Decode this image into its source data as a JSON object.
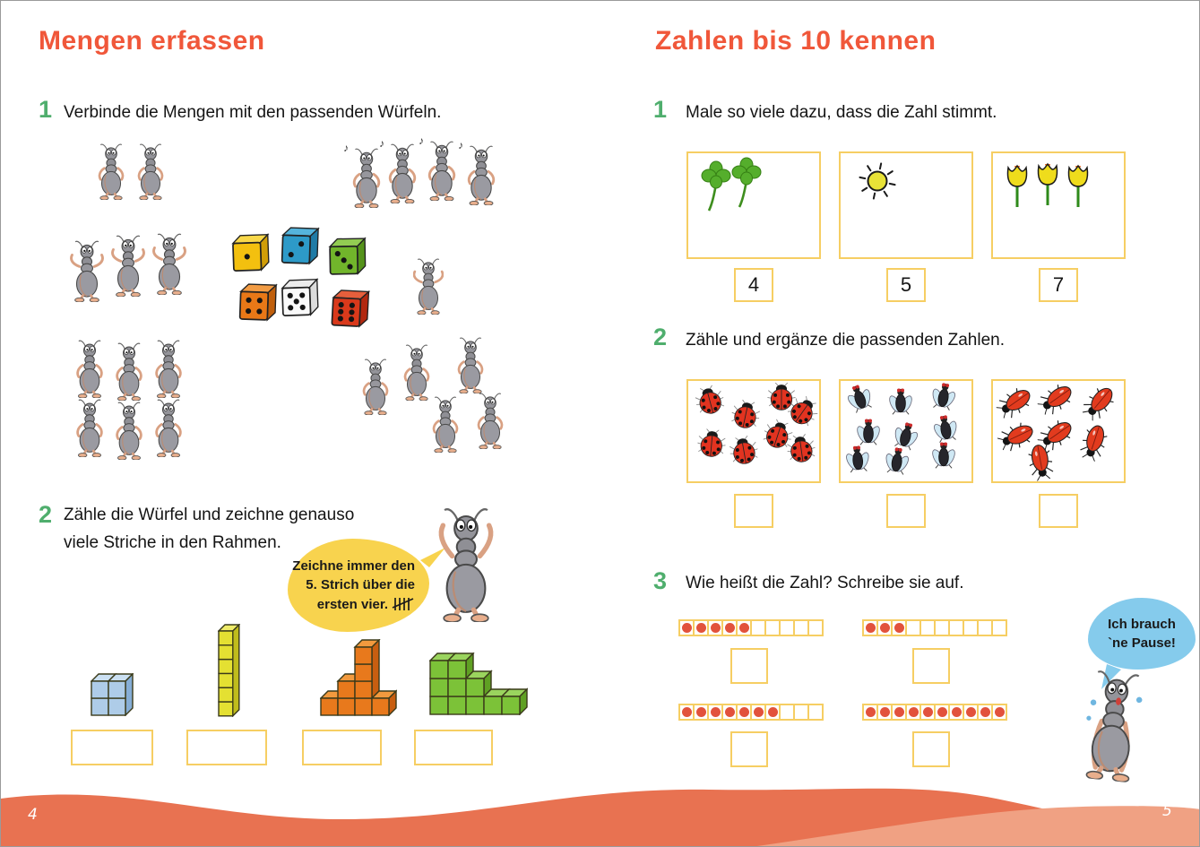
{
  "colors": {
    "title_orange": "#F0573A",
    "task_number_green": "#4FAE6D",
    "frame_border_yellow": "#F6CE63",
    "counting_dot_red": "#E2523C",
    "wave_main_orange": "#E87251",
    "wave_light_salmon": "#F0A183",
    "hint_bubble_yellow": "#F8D34E",
    "pause_bubble_blue": "#85CBEC"
  },
  "left_page": {
    "title": "Mengen erfassen",
    "page_number": "4",
    "task1": {
      "number": "1",
      "text": "Verbinde die Mengen mit den passenden Würfeln.",
      "ant_groups": [
        {
          "name": "two-ants",
          "count": 2
        },
        {
          "name": "four-marching-ants",
          "count": 4
        },
        {
          "name": "three-dancing-ants",
          "count": 3
        },
        {
          "name": "one-running-ant",
          "count": 1
        },
        {
          "name": "six-standing-ants",
          "count": 6
        },
        {
          "name": "five-walking-ants",
          "count": 5
        }
      ],
      "dice": [
        {
          "color": "yellow",
          "pips": 1
        },
        {
          "color": "blue",
          "pips": 2
        },
        {
          "color": "green",
          "pips": 3
        },
        {
          "color": "orange",
          "pips": 4
        },
        {
          "color": "white",
          "pips": 5
        },
        {
          "color": "red",
          "pips": 6
        }
      ]
    },
    "task2": {
      "number": "2",
      "text_line1": "Zähle die Würfel und zeichne genauso",
      "text_line2": "viele Striche in den Rahmen.",
      "bubble_lines": [
        "Zeichne immer den",
        "5. Strich über die",
        "ersten vier."
      ],
      "cube_structures": [
        {
          "color": "blue",
          "column_heights": [
            2,
            2
          ]
        },
        {
          "color": "yellow",
          "column_heights": [
            6
          ]
        },
        {
          "color": "orange",
          "column_heights": [
            1,
            2,
            4,
            1
          ]
        },
        {
          "color": "green",
          "column_heights": [
            3,
            3,
            2,
            1,
            1
          ]
        }
      ],
      "answer_frame_count": 4
    }
  },
  "right_page": {
    "title": "Zahlen bis 10 kennen",
    "page_number": "5",
    "task1": {
      "number": "1",
      "text": "Male so viele dazu, dass die Zahl stimmt.",
      "boxes": [
        {
          "item": "clover",
          "drawn_count": 2,
          "target_number": "4"
        },
        {
          "item": "sun",
          "drawn_count": 1,
          "target_number": "5"
        },
        {
          "item": "tulip",
          "drawn_count": 3,
          "target_number": "7"
        }
      ]
    },
    "task2": {
      "number": "2",
      "text": "Zähle und ergänze die passenden Zahlen.",
      "boxes": [
        {
          "item": "ladybug",
          "count": 8
        },
        {
          "item": "fly",
          "count": 9
        },
        {
          "item": "firebug",
          "count": 7
        }
      ]
    },
    "task3": {
      "number": "3",
      "text": "Wie heißt die Zahl? Schreibe sie auf.",
      "bubble_lines": [
        "Ich brauch",
        "`ne Pause!"
      ],
      "strips": [
        {
          "filled": 5,
          "total": 10
        },
        {
          "filled": 3,
          "total": 10
        },
        {
          "filled": 7,
          "total": 10
        },
        {
          "filled": 10,
          "total": 10
        }
      ]
    }
  }
}
